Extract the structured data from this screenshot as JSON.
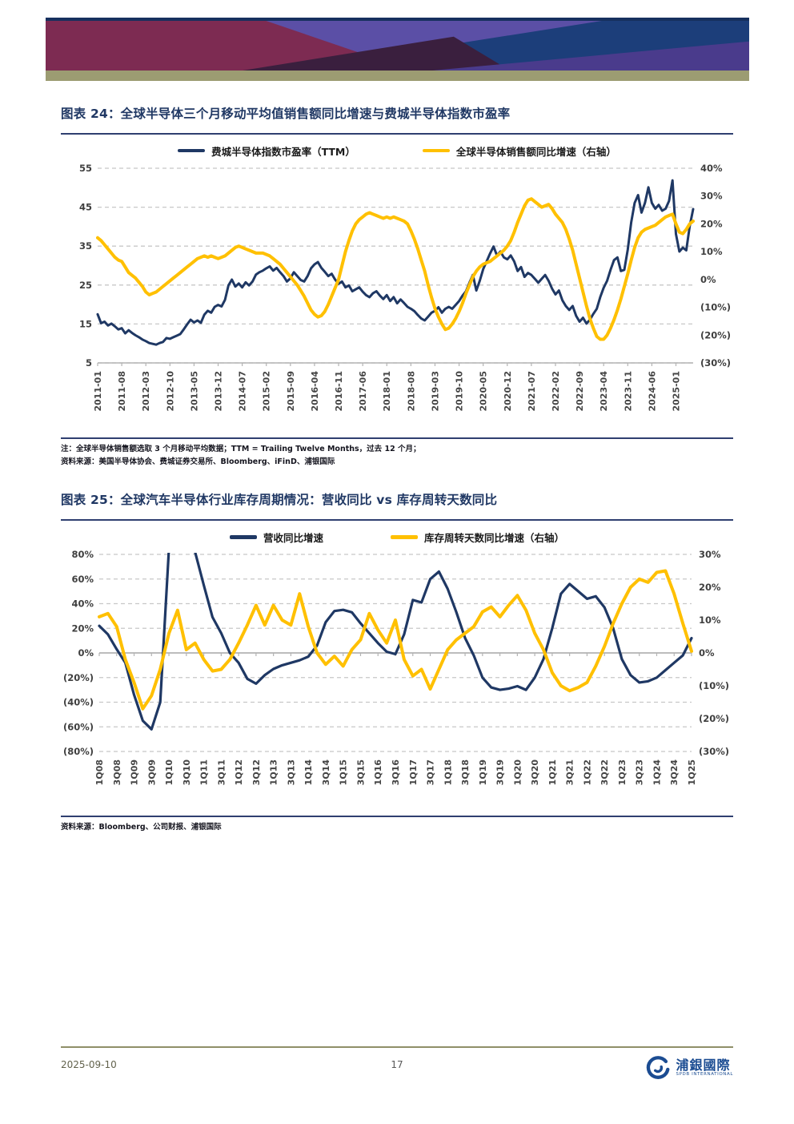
{
  "page": {
    "date": "2025-09-10",
    "page_number": "17",
    "logo_text": "浦銀國際",
    "logo_sub": "SPDB INTERNATIONAL"
  },
  "colors": {
    "series_blue": "#1F3864",
    "series_gold": "#FFC000",
    "rule_navy": "#2F3F70",
    "accent_olive": "#9C9C72",
    "title_navy": "#203864",
    "footer_olive": "#8F8F68",
    "logo_blue": "#1B4C92"
  },
  "figure24": {
    "title": "图表 24：全球半导体三个月移动平均值销售额同比增速与费城半导体指数市盈率",
    "note_line1": "注：全球半导体销售额选取 3 个月移动平均数据；TTM = Trailing Twelve Months，过去 12 个月；",
    "note_line2": "资料来源：美国半导体协会、费城证券交易所、Bloomberg、iFinD、浦银国际"
  },
  "figure25": {
    "title": "图表 25：全球汽车半导体行业库存周期情况：营收同比 vs 库存周转天数同比",
    "note_line1": "资料来源：Bloomberg、公司财报、浦银国际"
  },
  "chart_data": [
    {
      "type": "line",
      "title": "全球半导体三个月移动平均值销售额同比增速与费城半导体指数市盈率",
      "x_start": "2011-01",
      "x_frequency": "monthly",
      "x_label_step": 7,
      "x_tick_labels": [
        "2011-01",
        "2011-08",
        "2012-03",
        "2012-10",
        "2013-05",
        "2013-12",
        "2014-07",
        "2015-02",
        "2015-09",
        "2016-04",
        "2016-11",
        "2017-06",
        "2018-01",
        "2018-08",
        "2019-03",
        "2019-10",
        "2020-05",
        "2020-12",
        "2021-07",
        "2022-02",
        "2022-09",
        "2023-04",
        "2023-11",
        "2024-06",
        "2025-01"
      ],
      "left_axis": {
        "max": 55,
        "min": 5,
        "tick_labels": [
          "55",
          "45",
          "35",
          "25",
          "15",
          "5"
        ]
      },
      "right_axis": {
        "max": 40,
        "min": -30,
        "tick_labels": [
          "40%",
          "30%",
          "20%",
          "10%",
          "0%",
          "(10%)",
          "(20%)",
          "(30%)"
        ]
      },
      "axis_at_zero": false,
      "zero_line_solid": false,
      "grid": true,
      "legend_position": "top",
      "series": [
        {
          "name": "费城半导体指数市盈率（TTM）",
          "axis": "left",
          "color": "#1F3864",
          "width": 3,
          "values": [
            17.5,
            15.2,
            15.6,
            14.6,
            15.1,
            14.4,
            13.6,
            13.9,
            12.6,
            13.4,
            12.7,
            12.1,
            11.6,
            11.0,
            10.6,
            10.1,
            9.9,
            9.7,
            10.1,
            10.4,
            11.4,
            11.2,
            11.6,
            12.0,
            12.4,
            13.6,
            14.9,
            16.1,
            15.4,
            15.9,
            15.3,
            17.4,
            18.4,
            17.9,
            19.4,
            19.9,
            19.5,
            21.2,
            24.9,
            26.4,
            24.6,
            25.4,
            24.4,
            25.7,
            24.9,
            25.9,
            27.7,
            28.3,
            28.7,
            29.3,
            29.8,
            28.7,
            29.4,
            28.3,
            27.3,
            25.9,
            26.7,
            28.3,
            27.3,
            26.3,
            25.9,
            27.3,
            29.3,
            30.3,
            30.9,
            29.4,
            28.4,
            27.3,
            27.9,
            26.4,
            25.3,
            25.9,
            24.4,
            24.9,
            23.4,
            23.9,
            24.4,
            23.3,
            22.4,
            21.9,
            22.9,
            23.4,
            22.3,
            21.4,
            22.4,
            20.9,
            21.9,
            20.3,
            21.3,
            20.4,
            19.4,
            18.9,
            18.3,
            17.3,
            16.4,
            15.9,
            16.9,
            17.9,
            18.4,
            19.3,
            17.9,
            18.9,
            19.4,
            18.9,
            19.9,
            20.9,
            22.3,
            23.4,
            25.6,
            27.6,
            23.6,
            26.1,
            29.1,
            31.1,
            33.1,
            34.9,
            32.6,
            33.6,
            32.1,
            31.6,
            32.6,
            31.1,
            28.6,
            29.6,
            27.1,
            28.1,
            27.6,
            26.6,
            25.6,
            26.6,
            27.6,
            26.1,
            24.1,
            22.6,
            23.6,
            21.1,
            19.6,
            18.6,
            19.6,
            17.1,
            15.6,
            16.6,
            15.1,
            16.1,
            17.6,
            18.9,
            21.9,
            24.3,
            26.1,
            28.9,
            31.4,
            32.1,
            28.6,
            28.9,
            34.1,
            41.1,
            46.1,
            48.1,
            43.6,
            46.1,
            50.1,
            46.1,
            44.6,
            45.6,
            44.1,
            44.6,
            46.6,
            51.9,
            38.1,
            33.6,
            34.6,
            33.9,
            40.1,
            44.5
          ]
        },
        {
          "name": "全球半导体销售额同比增速（右轴）",
          "axis": "right",
          "color": "#FFC000",
          "width": 4,
          "unit": "%",
          "values": [
            15,
            14,
            12.5,
            11,
            9.5,
            8,
            7,
            6.5,
            4.5,
            2.5,
            1.5,
            0.5,
            -1,
            -2.5,
            -4.5,
            -5.5,
            -5,
            -4.5,
            -3.5,
            -2.5,
            -1.5,
            -0.5,
            0.5,
            1.5,
            2.5,
            3.5,
            4.5,
            5.5,
            6.5,
            7.5,
            8,
            8.5,
            8,
            8.5,
            8,
            7.5,
            8,
            8.5,
            9.5,
            10.5,
            11.5,
            12,
            11.5,
            11,
            10.5,
            10,
            9.5,
            9.5,
            9.5,
            9,
            8.5,
            7.5,
            6.5,
            5.5,
            4,
            2.5,
            1,
            -0.5,
            -2,
            -4,
            -6,
            -8.5,
            -11,
            -12.5,
            -13.5,
            -13,
            -11.5,
            -9,
            -6,
            -3,
            0,
            5,
            10,
            14,
            17.5,
            20,
            21.5,
            22.5,
            23.5,
            24,
            23.5,
            23,
            22.5,
            22,
            22.5,
            22,
            22.5,
            22,
            21.5,
            21,
            20,
            17.5,
            14.5,
            11,
            7,
            3,
            -2,
            -6.5,
            -10.5,
            -13.5,
            -16,
            -18,
            -17.5,
            -16,
            -14,
            -11.5,
            -8.5,
            -5,
            -2,
            1,
            3,
            4.5,
            5.5,
            6,
            6.5,
            7.5,
            8.5,
            9.5,
            10.5,
            12,
            14,
            17,
            20.5,
            23.5,
            26.5,
            28.5,
            29,
            28,
            27,
            26,
            26.5,
            27,
            25.5,
            23.5,
            22,
            20.5,
            18,
            14.5,
            10.5,
            5.5,
            0.5,
            -4.5,
            -9.5,
            -14,
            -17.5,
            -20.5,
            -21.5,
            -21.5,
            -20,
            -17.5,
            -14.5,
            -11,
            -7,
            -2.5,
            2,
            7,
            11.5,
            15,
            17,
            18,
            18.5,
            19,
            19.5,
            20.5,
            21.5,
            22.5,
            23,
            23.5,
            20,
            17,
            16.5,
            18,
            20,
            21
          ]
        }
      ]
    },
    {
      "type": "line",
      "title": "全球汽车半导体行业库存周期情况：营收同比 vs 库存周转天数同比",
      "x_start": "1Q08",
      "x_frequency": "quarterly",
      "x_label_step": 2,
      "x_tick_labels": [
        "1Q08",
        "3Q08",
        "1Q09",
        "3Q09",
        "1Q10",
        "3Q10",
        "1Q11",
        "3Q11",
        "1Q12",
        "3Q12",
        "1Q13",
        "3Q13",
        "1Q14",
        "3Q14",
        "1Q15",
        "3Q15",
        "1Q16",
        "3Q16",
        "1Q17",
        "3Q17",
        "1Q18",
        "3Q18",
        "1Q19",
        "3Q19",
        "1Q20",
        "3Q20",
        "1Q21",
        "3Q21",
        "1Q22",
        "3Q22",
        "1Q23",
        "3Q23",
        "1Q24",
        "3Q24",
        "1Q25"
      ],
      "left_axis": {
        "max": 80,
        "min": -80,
        "tick_labels": [
          "80%",
          "60%",
          "40%",
          "20%",
          "0%",
          "(20%)",
          "(40%)",
          "(60%)",
          "(80%)"
        ]
      },
      "right_axis": {
        "max": 30,
        "min": -30,
        "tick_labels": [
          "30%",
          "20%",
          "10%",
          "0%",
          "(10%)",
          "(20%)",
          "(30%)"
        ]
      },
      "axis_at_zero": true,
      "zero_line_solid": true,
      "grid": true,
      "legend_position": "top",
      "series": [
        {
          "name": "营收同比增速",
          "axis": "left",
          "color": "#1F3864",
          "width": 3.2,
          "unit": "%",
          "values": [
            22,
            15,
            3,
            -8,
            -34,
            -55,
            -62,
            -40,
            85,
            95,
            88,
            82,
            55,
            29,
            16,
            0,
            -8,
            -21,
            -25,
            -18,
            -13,
            -10,
            -8,
            -6,
            -3,
            6,
            25,
            34,
            35,
            33,
            24,
            16,
            8,
            1,
            -1,
            15,
            43,
            41,
            60,
            66,
            52,
            33,
            12,
            -2,
            -20,
            -28,
            -30,
            -29,
            -27,
            -30,
            -20,
            -5,
            20,
            48,
            56,
            50,
            44,
            46,
            37,
            20,
            -5,
            -18,
            -24,
            -23,
            -20,
            -14,
            -8,
            -2,
            12
          ]
        },
        {
          "name": "库存周转天数同比增速（右轴）",
          "axis": "right",
          "color": "#FFC000",
          "width": 4,
          "unit": "%",
          "values": [
            11,
            12,
            8,
            -2,
            -9,
            -17,
            -13,
            -5,
            6,
            13,
            1,
            3,
            -2,
            -5.5,
            -5,
            -2,
            3,
            8.5,
            14.5,
            8.5,
            14.5,
            10,
            8.5,
            18,
            8,
            0,
            -3.5,
            -1,
            -4,
            1,
            4,
            12,
            7,
            3,
            10,
            -2,
            -7,
            -5,
            -11,
            -5,
            1,
            4,
            6,
            8,
            12.5,
            14,
            11,
            14.5,
            17.5,
            13,
            6,
            1,
            -6,
            -10,
            -11.5,
            -10.5,
            -9,
            -4,
            2,
            9,
            15,
            20,
            22.5,
            21.5,
            24.5,
            25,
            18,
            9,
            0.5
          ]
        }
      ]
    }
  ]
}
